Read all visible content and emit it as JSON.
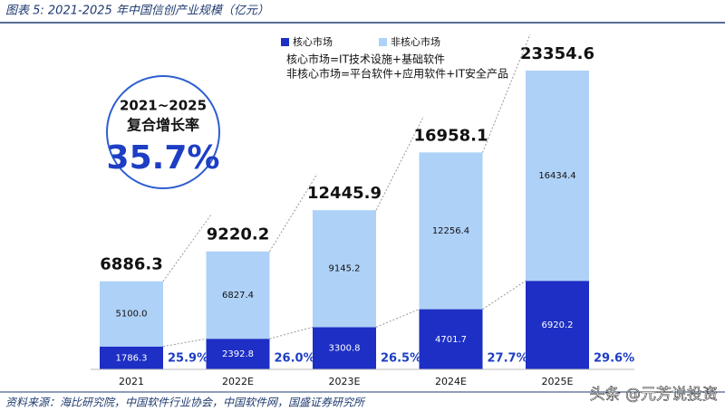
{
  "title": "图表 5:  2021-2025 年中国信创产业规模（亿元）",
  "source": "资料来源：海比研究院，中国软件行业协会，中国软件网，国盛证券研究所",
  "watermark": "头条 @元芳说投资",
  "chart_data": {
    "type": "stacked-bar",
    "categories": [
      "2021",
      "2022E",
      "2023E",
      "2024E",
      "2025E"
    ],
    "series": [
      {
        "name": "核心市场",
        "color": "#1d2fc4",
        "values": [
          1786.3,
          2392.8,
          3300.8,
          4701.7,
          6920.2
        ]
      },
      {
        "name": "非核心市场",
        "color": "#aed1f7",
        "values": [
          5100.0,
          6827.4,
          9145.2,
          12256.4,
          16434.4
        ],
        "value_labels": [
          "5100.0",
          "6827.4",
          "9145.2",
          "12256.4",
          "16434.4"
        ]
      }
    ],
    "totals": [
      6886.3,
      9220.2,
      12445.9,
      16958.1,
      23354.6
    ],
    "core_share_labels": [
      "25.9%",
      "26.0%",
      "26.5%",
      "27.7%",
      "29.6%"
    ],
    "annotations": [
      "核心市场=IT技术设施+基础软件",
      "非核心市场=平台软件+应用软件+IT安全产品"
    ],
    "cagr": {
      "period": "2021~2025",
      "label": "复合增长率",
      "value": "35.7%"
    }
  }
}
